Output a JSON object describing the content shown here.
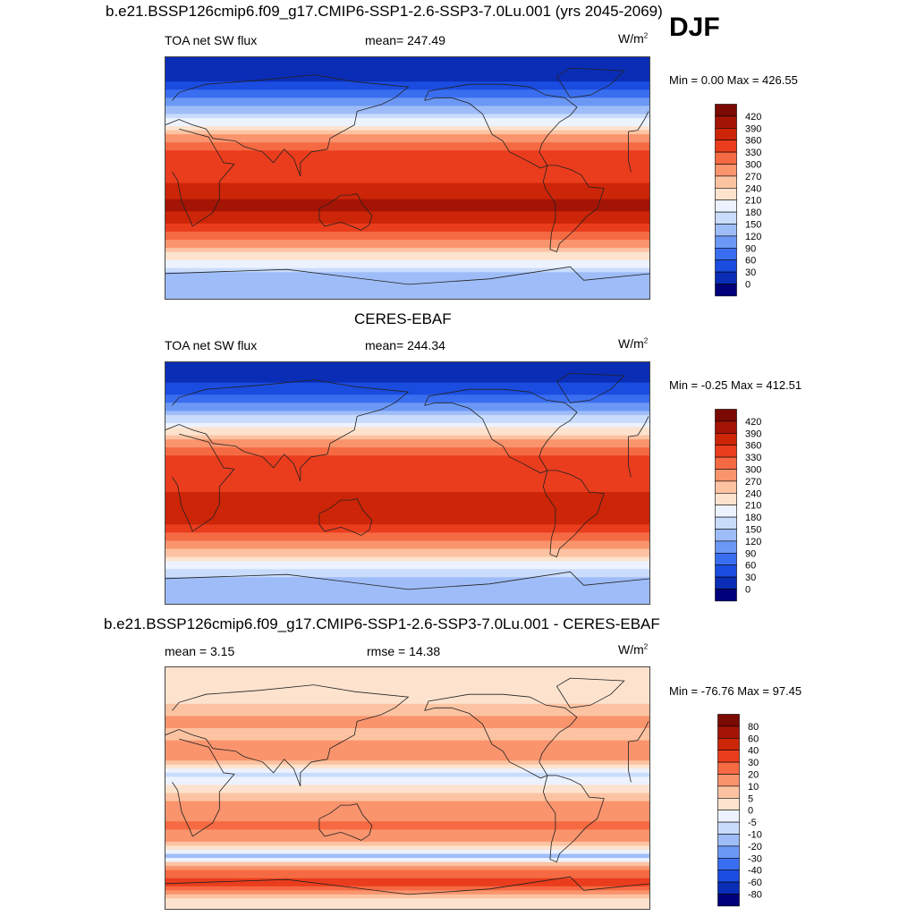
{
  "season": "DJF",
  "panels": [
    {
      "title": "b.e21.BSSP126cmip6.f09_g17.CMIP6-SSP1-2.6-SSP3-7.0Lu.001 (yrs 2045-2069)",
      "left_label": "TOA net SW flux",
      "center_label": "mean= 247.49",
      "units_base": "W/m",
      "units_exp": "2",
      "minmax": "Min =   0.00 Max = 426.55"
    },
    {
      "title": "CERES-EBAF",
      "left_label": "TOA net SW flux",
      "center_label": "mean= 244.34",
      "units_base": "W/m",
      "units_exp": "2",
      "minmax": "Min =  -0.25 Max = 412.51"
    },
    {
      "title": "b.e21.BSSP126cmip6.f09_g17.CMIP6-SSP1-2.6-SSP3-7.0Lu.001 - CERES-EBAF",
      "left_label": "mean =   3.15",
      "center_label": "rmse =  14.38",
      "units_base": "W/m",
      "units_exp": "2",
      "minmax": "Min = -76.76 Max =  97.45"
    }
  ],
  "chart_data": [
    {
      "type": "heatmap",
      "title": "b.e21.BSSP126cmip6.f09_g17.CMIP6-SSP1-2.6-SSP3-7.0Lu.001 (yrs 2045-2069)",
      "variable": "TOA net SW flux",
      "units": "W/m2",
      "mean": 247.49,
      "min": 0.0,
      "max": 426.55,
      "colorbar_levels": [
        0,
        30,
        60,
        90,
        120,
        150,
        180,
        210,
        240,
        270,
        300,
        330,
        360,
        390,
        420
      ],
      "colorbar_colors": [
        "#00007a",
        "#0a2db6",
        "#1a4ce0",
        "#3a6ef0",
        "#6c98f5",
        "#9ebdf8",
        "#c9dcfb",
        "#ecf2fe",
        "#fde3ce",
        "#fcc3a2",
        "#f9946d",
        "#f56a42",
        "#ea3d1d",
        "#cc2508",
        "#a41405",
        "#7a0a02"
      ],
      "zonal_profile": {
        "lat": [
          90,
          80,
          70,
          60,
          50,
          40,
          30,
          20,
          10,
          0,
          -10,
          -20,
          -30,
          -40,
          -50,
          -60,
          -70,
          -80,
          -90
        ],
        "value": [
          0,
          5,
          40,
          90,
          140,
          210,
          290,
          330,
          345,
          350,
          380,
          400,
          370,
          320,
          270,
          215,
          140,
          130,
          130
        ]
      }
    },
    {
      "type": "heatmap",
      "title": "CERES-EBAF",
      "variable": "TOA net SW flux",
      "units": "W/m2",
      "mean": 244.34,
      "min": -0.25,
      "max": 412.51,
      "colorbar_levels": [
        0,
        30,
        60,
        90,
        120,
        150,
        180,
        210,
        240,
        270,
        300,
        330,
        360,
        390,
        420
      ],
      "colorbar_colors": [
        "#00007a",
        "#0a2db6",
        "#1a4ce0",
        "#3a6ef0",
        "#6c98f5",
        "#9ebdf8",
        "#c9dcfb",
        "#ecf2fe",
        "#fde3ce",
        "#fcc3a2",
        "#f9946d",
        "#f56a42",
        "#ea3d1d",
        "#cc2508",
        "#a41405",
        "#7a0a02"
      ],
      "zonal_profile": {
        "lat": [
          90,
          80,
          70,
          60,
          50,
          40,
          30,
          20,
          10,
          0,
          -10,
          -20,
          -30,
          -40,
          -50,
          -60,
          -70,
          -80,
          -90
        ],
        "value": [
          0,
          5,
          45,
          95,
          150,
          215,
          290,
          330,
          340,
          345,
          375,
          390,
          360,
          310,
          255,
          200,
          140,
          130,
          130
        ]
      }
    },
    {
      "type": "heatmap",
      "title": "b.e21.BSSP126cmip6.f09_g17.CMIP6-SSP1-2.6-SSP3-7.0Lu.001 - CERES-EBAF",
      "variable": "TOA net SW flux difference",
      "units": "W/m2",
      "mean": 3.15,
      "rmse": 14.38,
      "min": -76.76,
      "max": 97.45,
      "colorbar_levels": [
        -80,
        -60,
        -40,
        -30,
        -20,
        -10,
        -5,
        0,
        5,
        10,
        20,
        30,
        40,
        60,
        80
      ],
      "colorbar_colors": [
        "#00007a",
        "#0a2db6",
        "#1a4ce0",
        "#3a6ef0",
        "#6c98f5",
        "#9ebdf8",
        "#c9dcfb",
        "#ecf2fe",
        "#fde3ce",
        "#fcc3a2",
        "#f9946d",
        "#f56a42",
        "#ea3d1d",
        "#cc2508",
        "#a41405",
        "#7a0a02"
      ],
      "zonal_profile": {
        "lat": [
          90,
          80,
          70,
          60,
          50,
          40,
          30,
          20,
          10,
          0,
          -10,
          -20,
          -30,
          -40,
          -50,
          -60,
          -70,
          -80,
          -90
        ],
        "value": [
          0,
          2,
          3,
          6,
          12,
          8,
          14,
          10,
          -6,
          2,
          12,
          18,
          22,
          8,
          -12,
          20,
          35,
          5,
          0
        ]
      }
    }
  ]
}
